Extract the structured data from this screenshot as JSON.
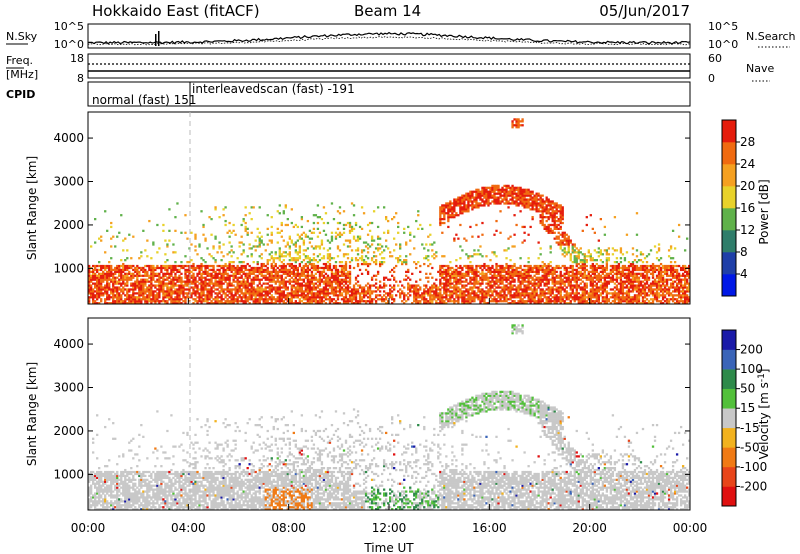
{
  "header": {
    "station": "Hokkaido East (fitACF)",
    "beam": "Beam 14",
    "date": "05/Jun/2017"
  },
  "noise_panel": {
    "left_label": "N.Sky",
    "right_label": "N.Search",
    "tick_top": "10^5",
    "tick_bottom": "10^0"
  },
  "freq_panel": {
    "left_label": "Freq.",
    "left_unit": "[MHz]",
    "left_ticks": [
      "18",
      "8"
    ],
    "right_label": "Nave",
    "right_ticks": [
      "60",
      "0"
    ]
  },
  "cpid_panel": {
    "label": "CPID",
    "modes": [
      {
        "name": "normal (fast) 151",
        "start_hour": 0
      },
      {
        "name": "interleavedscan (fast) -191",
        "start_hour": 4
      }
    ]
  },
  "chart_data": [
    {
      "type": "heatmap",
      "name": "power",
      "ylabel": "Slant Range [km]",
      "xlabel": "",
      "xlim": [
        0,
        24
      ],
      "ylim": [
        180,
        4600
      ],
      "yticks": [
        "1000",
        "2000",
        "3000",
        "4000"
      ],
      "colorbar_label": "Power [dB]",
      "colorbar_ticks": [
        "4",
        "8",
        "12",
        "16",
        "20",
        "24",
        "28"
      ],
      "colors": [
        "#0018e6",
        "#1f3fa8",
        "#2f7d6a",
        "#5fb14a",
        "#e8d22a",
        "#f5a020",
        "#f06a10",
        "#e51c0c"
      ]
    },
    {
      "type": "heatmap",
      "name": "velocity",
      "ylabel": "Slant Range [km]",
      "xlabel": "Time UT",
      "xlim": [
        0,
        24
      ],
      "ylim": [
        180,
        4600
      ],
      "xticks": [
        "00:00",
        "04:00",
        "08:00",
        "12:00",
        "16:00",
        "20:00",
        "00:00"
      ],
      "yticks": [
        "1000",
        "2000",
        "3000",
        "4000"
      ],
      "colorbar_label": "Velocity [m s^-1]",
      "colorbar_ticks": [
        "200",
        "100",
        "50",
        "15",
        "-15",
        "-50",
        "-100",
        "-200"
      ],
      "colors": [
        "#1a1aa8",
        "#3a64b8",
        "#2e8a4a",
        "#52c03a",
        "#c8c8c8",
        "#f2b21e",
        "#f07a14",
        "#e8451a",
        "#e01010"
      ]
    }
  ]
}
